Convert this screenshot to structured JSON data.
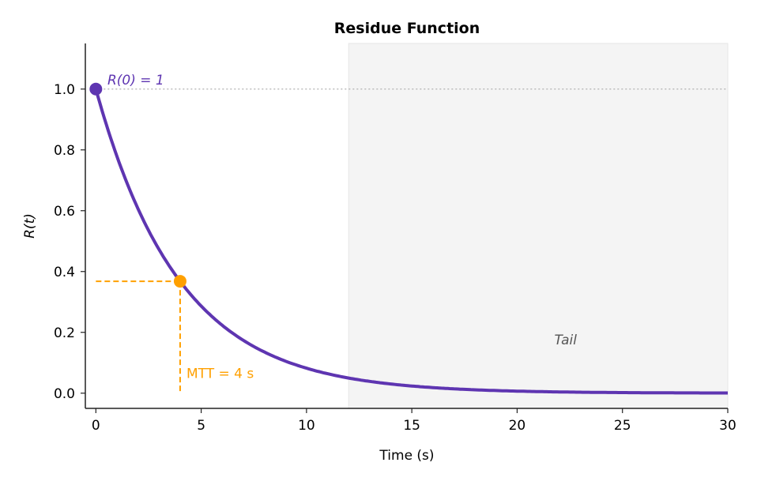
{
  "chart_data": {
    "type": "line",
    "title": "Residue Function",
    "xlabel": "Time (s)",
    "ylabel": "R(t)",
    "xlim": [
      -0.5,
      30
    ],
    "ylim": [
      -0.05,
      1.15
    ],
    "xticks": [
      0,
      5,
      10,
      15,
      20,
      25,
      30
    ],
    "yticks": [
      "0.0",
      "0.2",
      "0.4",
      "0.6",
      "0.8",
      "1.0"
    ],
    "grid": false,
    "series": [
      {
        "function": "exp(-t/4)",
        "x_range": [
          0,
          30
        ],
        "color": "#5e35b1"
      }
    ],
    "shaded_region": {
      "x": [
        12,
        30
      ],
      "label": "Tail",
      "color": "#f4f4f4"
    },
    "reference_line": {
      "y": 1.0,
      "style": "dotted",
      "color": "#b0b0b0"
    },
    "points": [
      {
        "x": 0,
        "y": 1.0,
        "label": "R(0) = 1",
        "color": "#5e35b1"
      },
      {
        "x": 4,
        "y": 0.368,
        "label": "MTT = 4 s",
        "color": "#ffa000"
      }
    ]
  }
}
